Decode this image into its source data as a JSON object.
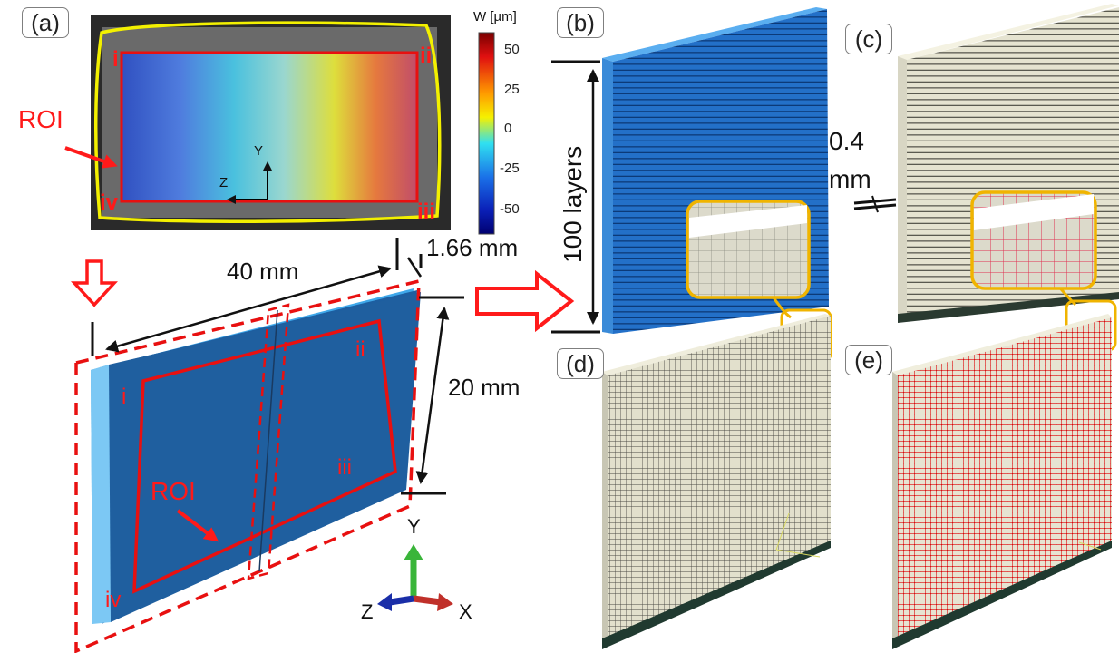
{
  "panels": {
    "a": "(a)",
    "b": "(b)",
    "c": "(c)",
    "d": "(d)",
    "e": "(e)"
  },
  "colorbar": {
    "title": "W [µm]",
    "ticks": [
      "50",
      "25",
      "0",
      "-25",
      "-50"
    ]
  },
  "photo": {
    "roi_label": "ROI",
    "corners": [
      "i",
      "ii",
      "iii",
      "iv"
    ],
    "axis_y": "Y",
    "axis_z": "Z"
  },
  "model": {
    "length": "40 mm",
    "height": "20 mm",
    "thickness": "1.66 mm",
    "roi_label": "ROI",
    "corners": [
      "i",
      "ii",
      "iii",
      "iv"
    ]
  },
  "triad": {
    "y": "Y",
    "z": "Z",
    "x": "X"
  },
  "layers": {
    "count_label": "100 layers",
    "layer_thickness_value": "0.4",
    "layer_thickness_unit": "mm"
  },
  "colors": {
    "plate_blue": "#1f5f9f",
    "edge_blue": "#3da6e8",
    "mesh_beige": "#e8e6d2",
    "node_red": "#e03030",
    "zoom_yellow": "#f0b400",
    "annot_red": "#ff1a1a"
  }
}
